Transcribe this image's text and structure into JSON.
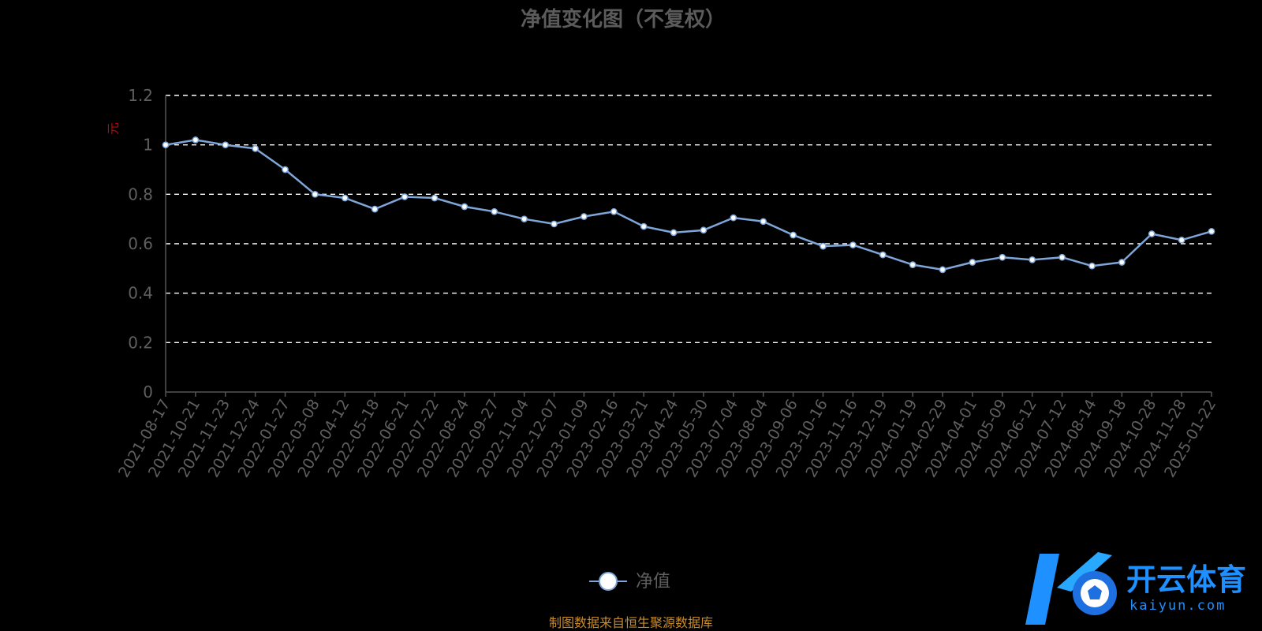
{
  "chart_data": {
    "type": "line",
    "title": "净值变化图（不复权）",
    "ylabel": "元",
    "ylim": [
      0,
      1.2
    ],
    "yticks": [
      "0",
      "0.2",
      "0.4",
      "0.6",
      "0.8",
      "1",
      "1.2"
    ],
    "grid": true,
    "legend_position": "bottom-center",
    "categories": [
      "2021-08-17",
      "2021-10-21",
      "2021-11-23",
      "2021-12-24",
      "2022-01-27",
      "2022-03-08",
      "2022-04-12",
      "2022-05-18",
      "2022-06-21",
      "2022-07-22",
      "2022-08-24",
      "2022-09-27",
      "2022-11-04",
      "2022-12-07",
      "2023-01-09",
      "2023-02-16",
      "2023-03-21",
      "2023-04-24",
      "2023-05-30",
      "2023-07-04",
      "2023-08-04",
      "2023-09-06",
      "2023-10-16",
      "2023-11-16",
      "2023-12-19",
      "2024-01-19",
      "2024-02-29",
      "2024-04-01",
      "2024-05-09",
      "2024-06-12",
      "2024-07-12",
      "2024-08-14",
      "2024-09-18",
      "2024-10-28",
      "2024-11-28",
      "2025-01-22"
    ],
    "series": [
      {
        "name": "净值",
        "color": "#7ea6d8",
        "values": [
          1.0,
          1.02,
          1.0,
          0.985,
          0.9,
          0.8,
          0.785,
          0.74,
          0.79,
          0.785,
          0.75,
          0.73,
          0.7,
          0.68,
          0.71,
          0.73,
          0.67,
          0.645,
          0.655,
          0.705,
          0.69,
          0.635,
          0.59,
          0.595,
          0.555,
          0.515,
          0.495,
          0.525,
          0.545,
          0.535,
          0.545,
          0.51,
          0.525,
          0.64,
          0.615,
          0.65
        ]
      }
    ],
    "source_note": "制图数据来自恒生聚源数据库"
  },
  "watermark": {
    "brand_cn": "开云体育",
    "brand_en": "kaiyun.com"
  },
  "colors": {
    "background": "#000000",
    "line": "#7ea6d8",
    "grid": "#ffffff",
    "axis_text": "#5f5f5f",
    "unit": "#cc0000",
    "source": "#c98a2a",
    "logo": "#1e90ff"
  }
}
